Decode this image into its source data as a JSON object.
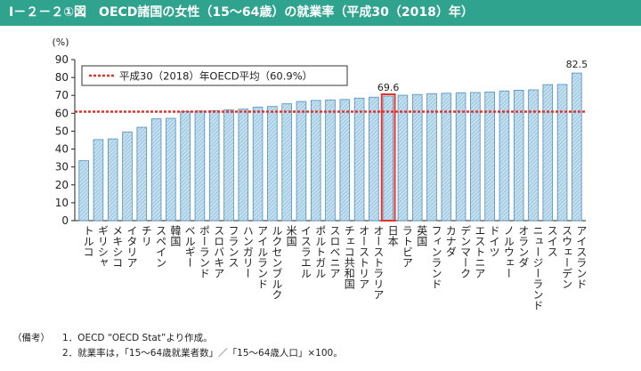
{
  "header": {
    "title": "Ⅰ－２－２①図　OECD諸国の女性（15～64歳）の就業率（平成30（2018）年）"
  },
  "notes": {
    "prefix": "（備考）",
    "lines": [
      "1．OECD “OECD Stat”より作成。",
      "2．就業率は，「15～64歳就業者数」／「15～64歳人口」×100。"
    ]
  },
  "colors": {
    "header_bg": "#2fa38e",
    "bar_fill": "#a9cfe6",
    "bar_edge": "#4e8fbd",
    "average_line": "#e4322b",
    "highlight": "#e4322b"
  },
  "chart_data": {
    "type": "bar",
    "title": "",
    "xlabel": "",
    "ylabel": "(%)",
    "ylim": [
      0,
      90
    ],
    "yticks": [
      0,
      10,
      20,
      30,
      40,
      50,
      60,
      70,
      80,
      90
    ],
    "grid": false,
    "categories": [
      "トルコ",
      "ギリシャ",
      "メキシコ",
      "イタリア",
      "チリ",
      "スペイン",
      "韓国",
      "ベルギー",
      "ポーランド",
      "スロバキア",
      "フランス",
      "ハンガリー",
      "アイルランド",
      "ルクセンブルク",
      "米国",
      "イスラエル",
      "ポルトガル",
      "スロベニア",
      "チェコ共和国",
      "オーストリア",
      "オーストラリア",
      "日本",
      "ラトビア",
      "英国",
      "フィンランド",
      "カナダ",
      "デンマーク",
      "エストニア",
      "ドイツ",
      "ノルウェー",
      "オランダ",
      "ニュージーランド",
      "スイス",
      "スウェーデン",
      "アイスランド"
    ],
    "values": [
      33.5,
      45.3,
      45.7,
      49.6,
      52.2,
      56.9,
      57.2,
      61.0,
      61.3,
      61.5,
      61.9,
      62.3,
      63.5,
      63.8,
      65.3,
      66.6,
      67.2,
      67.5,
      67.7,
      68.5,
      69.0,
      69.6,
      70.1,
      70.5,
      71.0,
      71.2,
      71.5,
      71.6,
      71.9,
      72.5,
      72.9,
      73.1,
      76.0,
      76.1,
      82.5
    ],
    "highlight_category": "日本",
    "data_labels": [
      {
        "category": "日本",
        "label": "69.6"
      },
      {
        "category": "アイスランド",
        "label": "82.5"
      }
    ],
    "reference_line": {
      "value": 60.9,
      "label": "平成30（2018）年OECD平均（60.9%）"
    },
    "legend_position": "top-left"
  }
}
